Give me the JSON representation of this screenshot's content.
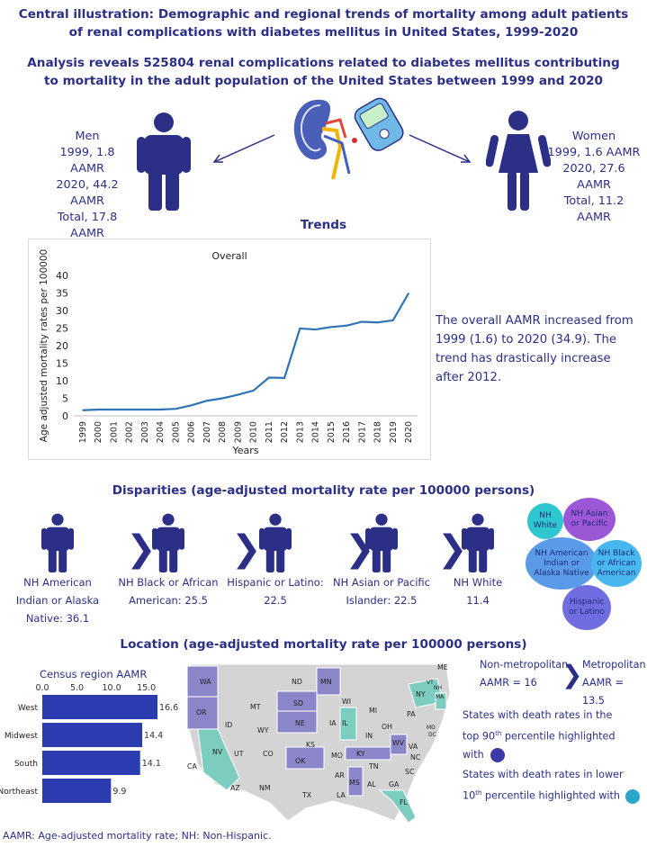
{
  "header": {
    "title_line1": "Central illustration: Demographic and regional trends of mortality among adult patients",
    "title_line2": "of renal complications with diabetes mellitus in United States, 1999-2020",
    "subtitle_line1": "Analysis reveals 525804 renal complications related to diabetes mellitus contributing",
    "subtitle_line2": "to mortality in the adult population of the United States between 1999 and 2020"
  },
  "sex": {
    "men": {
      "title": "Men",
      "l1": "1999, 1.8 AAMR",
      "l2": "2020, 44.2 AAMR",
      "l3": "Total, 17.8 AAMR"
    },
    "women": {
      "title": "Women",
      "l1": "1999, 1.6 AAMR",
      "l2": "2020, 27.6 AAMR",
      "l3": "Total, 11.2 AAMR"
    }
  },
  "trends": {
    "heading": "Trends",
    "text": "The overall AAMR increased from 1999 (1.6) to 2020 (34.9). The trend has drastically increase after 2012."
  },
  "chart_data": {
    "type": "line",
    "title": "Overall",
    "xlabel": "Years",
    "ylabel": "Age adjusted mortality rates per 100000",
    "ylim": [
      0,
      40
    ],
    "yticks": [
      0,
      5,
      10,
      15,
      20,
      25,
      30,
      35,
      40
    ],
    "x": [
      "1999",
      "2000",
      "2001",
      "2002",
      "2003",
      "2004",
      "2005",
      "2006",
      "2007",
      "2008",
      "2009",
      "2010",
      "2011",
      "2012",
      "2013",
      "2014",
      "2015",
      "2016",
      "2017",
      "2018",
      "2019",
      "2020"
    ],
    "series": [
      {
        "name": "Overall",
        "color": "#2e75b6",
        "values": [
          1.6,
          1.8,
          1.8,
          1.8,
          1.8,
          1.8,
          2.0,
          3.0,
          4.3,
          5.0,
          6.0,
          7.2,
          10.9,
          10.8,
          24.9,
          24.6,
          25.3,
          25.7,
          26.8,
          26.6,
          27.2,
          34.9
        ]
      }
    ]
  },
  "disparities": {
    "heading": "Disparities (age-adjusted mortality rate per 100000 persons)",
    "groups": [
      {
        "l1": "NH American",
        "l2": "Indian or Alaska",
        "l3": "Native: 36.1"
      },
      {
        "l1": "NH Black or African",
        "l2": "American: 25.5"
      },
      {
        "l1": "Hispanic or Latino:",
        "l2": "22.5"
      },
      {
        "l1": "NH Asian or Pacific",
        "l2": "Islander: 22.5"
      },
      {
        "l1": "NH White",
        "l2": "11.4"
      }
    ],
    "chevron": "❯",
    "bubbles": {
      "white": "NH White",
      "asian": "NH Asian or Pacific",
      "aian": "NH American Indian or Alaska Native",
      "black": "NH Black or African American",
      "hispanic": "Hispanic or Latino"
    }
  },
  "location": {
    "heading": "Location (age-adjusted mortality rate per 100000 persons)",
    "census": {
      "title": "Census region AAMR",
      "axis_ticks": [
        "0.0",
        "5.0",
        "10.0",
        "15.0"
      ],
      "regions": [
        {
          "name": "West",
          "value": 16.6,
          "label": "16.6"
        },
        {
          "name": "Midwest",
          "value": 14.4,
          "label": "14.4"
        },
        {
          "name": "South",
          "value": 14.1,
          "label": "14.1"
        },
        {
          "name": "Northeast",
          "value": 9.9,
          "label": "9.9"
        }
      ]
    },
    "nonmetro": {
      "l1": "Non-metropolitan",
      "l2": "AAMR = 16"
    },
    "metro": {
      "l1": "Metropolitan",
      "l2": "AAMR = 13.5"
    },
    "top_legend": {
      "l1": "States with death rates in the",
      "l2a": "top 90",
      "sup": "th",
      "l2b": " percentile highlighted",
      "l3": "with"
    },
    "low_legend": {
      "l1": "States with death rates in lower",
      "l2a": "10",
      "sup": "th",
      "l2b": " percentile highlighted with"
    },
    "colors": {
      "top": "#3d3aa8",
      "low": "#2aa6c8",
      "top_state": "#8b85c9",
      "low_state": "#7cccc0",
      "base_state": "#d4d4d4"
    }
  },
  "footnote": "AAMR: Age-adjusted mortality rate; NH: Non-Hispanic."
}
